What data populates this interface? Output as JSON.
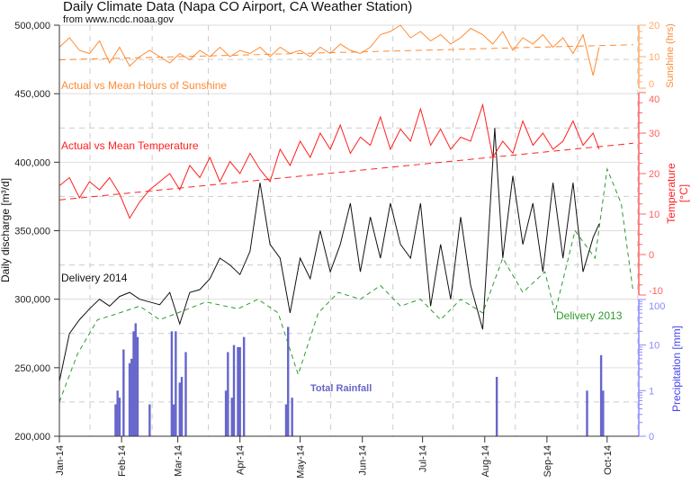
{
  "chart_data": {
    "type": "line",
    "title": "Daily Climate Data (Napa CO Airport, CA Weather Station)",
    "subtitle": "from www.ncdc.noaa.gov",
    "ylabel": "Daily discharge [m³/d]",
    "ylim": [
      200000,
      500000
    ],
    "yticks": [
      "200,000",
      "250,000",
      "300,000",
      "350,000",
      "400,000",
      "450,000",
      "500,000"
    ],
    "yticks_values": [
      200000,
      250000,
      300000,
      350000,
      400000,
      450000,
      500000
    ],
    "xlim": [
      "2014-01-01",
      "2014-10-15"
    ],
    "xticks": [
      {
        "date": "2014-01-01",
        "label": "Jan-14"
      },
      {
        "date": "2014-02-01",
        "label": "Feb-14"
      },
      {
        "date": "2014-03-01",
        "label": "Mar-14"
      },
      {
        "date": "2014-04-01",
        "label": "Apr-14"
      },
      {
        "date": "2014-05-01",
        "label": "May-14"
      },
      {
        "date": "2014-06-01",
        "label": "Jun-14"
      },
      {
        "date": "2014-07-01",
        "label": "Jul-14"
      },
      {
        "date": "2014-08-01",
        "label": "Aug-14"
      },
      {
        "date": "2014-09-01",
        "label": "Sep-14"
      },
      {
        "date": "2014-10-01",
        "label": "Oct-14"
      }
    ],
    "grid": true,
    "colors": {
      "sunshine": "#ff8a33",
      "temperature": "#ff2020",
      "delivery2014": "#111111",
      "delivery2013": "#2e9a2e",
      "rainfall": "#6666cc"
    },
    "right_axes": {
      "sunshine": {
        "label": "Sunshine (hrs)",
        "range": [
          0,
          20
        ],
        "ticks": [
          "0",
          "10",
          "20"
        ],
        "tick_values": [
          0,
          10,
          20
        ]
      },
      "temperature": {
        "label": "Temperature",
        "label2": "[°C]",
        "range": [
          -10,
          40
        ],
        "ticks": [
          "-10",
          "0",
          "10",
          "20",
          "30",
          "40"
        ],
        "tick_values": [
          -10,
          0,
          10,
          20,
          30,
          40
        ]
      },
      "precipitation": {
        "label": "Precipitation [mm]",
        "scale": "log",
        "range": [
          0.1,
          100
        ],
        "ticks": [
          "0",
          "1",
          "10",
          "100"
        ],
        "tick_values": [
          0.1,
          1,
          10,
          100
        ]
      }
    },
    "annotations": {
      "sunshine": "Actual vs Mean Hours of Sunshine",
      "temperature": "Actual vs Mean Temperature",
      "delivery2014": "Delivery 2014",
      "delivery2013": "Delivery 2013",
      "rainfall": "Total Rainfall"
    },
    "series": {
      "delivery2014": [
        [
          "2014-01-01",
          240000
        ],
        [
          "2014-01-06",
          275000
        ],
        [
          "2014-01-11",
          285000
        ],
        [
          "2014-01-16",
          293000
        ],
        [
          "2014-01-21",
          300000
        ],
        [
          "2014-01-26",
          295000
        ],
        [
          "2014-01-31",
          302000
        ],
        [
          "2014-02-05",
          305000
        ],
        [
          "2014-02-10",
          300000
        ],
        [
          "2014-02-15",
          298000
        ],
        [
          "2014-02-20",
          296000
        ],
        [
          "2014-02-25",
          305000
        ],
        [
          "2014-03-02",
          282000
        ],
        [
          "2014-03-07",
          305000
        ],
        [
          "2014-03-12",
          307000
        ],
        [
          "2014-03-17",
          315000
        ],
        [
          "2014-03-22",
          330000
        ],
        [
          "2014-03-27",
          325000
        ],
        [
          "2014-04-01",
          318000
        ],
        [
          "2014-04-06",
          335000
        ],
        [
          "2014-04-11",
          385000
        ],
        [
          "2014-04-16",
          340000
        ],
        [
          "2014-04-21",
          330000
        ],
        [
          "2014-04-26",
          290000
        ],
        [
          "2014-05-01",
          330000
        ],
        [
          "2014-05-06",
          315000
        ],
        [
          "2014-05-11",
          350000
        ],
        [
          "2014-05-16",
          320000
        ],
        [
          "2014-05-21",
          340000
        ],
        [
          "2014-05-26",
          370000
        ],
        [
          "2014-05-31",
          320000
        ],
        [
          "2014-06-05",
          360000
        ],
        [
          "2014-06-10",
          330000
        ],
        [
          "2014-06-15",
          370000
        ],
        [
          "2014-06-20",
          340000
        ],
        [
          "2014-06-25",
          330000
        ],
        [
          "2014-06-30",
          370000
        ],
        [
          "2014-07-05",
          295000
        ],
        [
          "2014-07-10",
          340000
        ],
        [
          "2014-07-15",
          300000
        ],
        [
          "2014-07-20",
          360000
        ],
        [
          "2014-07-25",
          310000
        ],
        [
          "2014-07-31",
          278000
        ],
        [
          "2014-08-03",
          350000
        ],
        [
          "2014-08-06",
          425000
        ],
        [
          "2014-08-10",
          330000
        ],
        [
          "2014-08-15",
          390000
        ],
        [
          "2014-08-20",
          340000
        ],
        [
          "2014-08-25",
          370000
        ],
        [
          "2014-08-30",
          320000
        ],
        [
          "2014-09-04",
          385000
        ],
        [
          "2014-09-09",
          330000
        ],
        [
          "2014-09-14",
          385000
        ],
        [
          "2014-09-19",
          320000
        ],
        [
          "2014-09-24",
          345000
        ],
        [
          "2014-09-27",
          355000
        ]
      ],
      "delivery2013": [
        [
          "2014-01-01",
          225000
        ],
        [
          "2014-01-10",
          260000
        ],
        [
          "2014-01-20",
          285000
        ],
        [
          "2014-01-31",
          290000
        ],
        [
          "2014-02-10",
          295000
        ],
        [
          "2014-02-20",
          285000
        ],
        [
          "2014-03-01",
          290000
        ],
        [
          "2014-03-15",
          298000
        ],
        [
          "2014-03-31",
          293000
        ],
        [
          "2014-04-10",
          300000
        ],
        [
          "2014-04-20",
          290000
        ],
        [
          "2014-04-30",
          245000
        ],
        [
          "2014-05-10",
          290000
        ],
        [
          "2014-05-20",
          305000
        ],
        [
          "2014-05-31",
          300000
        ],
        [
          "2014-06-10",
          310000
        ],
        [
          "2014-06-20",
          295000
        ],
        [
          "2014-06-30",
          300000
        ],
        [
          "2014-07-10",
          285000
        ],
        [
          "2014-07-20",
          300000
        ],
        [
          "2014-07-31",
          290000
        ],
        [
          "2014-08-10",
          330000
        ],
        [
          "2014-08-20",
          305000
        ],
        [
          "2014-08-31",
          320000
        ],
        [
          "2014-09-05",
          290000
        ],
        [
          "2014-09-15",
          350000
        ],
        [
          "2014-09-25",
          330000
        ],
        [
          "2014-10-01",
          395000
        ],
        [
          "2014-10-08",
          370000
        ],
        [
          "2014-10-14",
          305000
        ]
      ],
      "sunshine": [
        [
          "2014-01-01",
          13
        ],
        [
          "2014-01-06",
          16
        ],
        [
          "2014-01-11",
          12
        ],
        [
          "2014-01-16",
          11
        ],
        [
          "2014-01-21",
          15
        ],
        [
          "2014-01-26",
          8
        ],
        [
          "2014-01-31",
          13
        ],
        [
          "2014-02-05",
          7
        ],
        [
          "2014-02-10",
          10
        ],
        [
          "2014-02-15",
          12
        ],
        [
          "2014-02-20",
          10
        ],
        [
          "2014-02-25",
          8
        ],
        [
          "2014-03-02",
          11
        ],
        [
          "2014-03-07",
          9
        ],
        [
          "2014-03-12",
          12
        ],
        [
          "2014-03-17",
          10
        ],
        [
          "2014-03-22",
          13
        ],
        [
          "2014-03-27",
          10
        ],
        [
          "2014-04-01",
          12
        ],
        [
          "2014-04-06",
          11
        ],
        [
          "2014-04-11",
          13
        ],
        [
          "2014-04-16",
          10
        ],
        [
          "2014-04-21",
          13
        ],
        [
          "2014-04-26",
          11
        ],
        [
          "2014-05-01",
          12
        ],
        [
          "2014-05-06",
          10
        ],
        [
          "2014-05-11",
          13
        ],
        [
          "2014-05-16",
          11
        ],
        [
          "2014-05-21",
          14
        ],
        [
          "2014-05-26",
          12
        ],
        [
          "2014-05-31",
          11
        ],
        [
          "2014-06-05",
          13
        ],
        [
          "2014-06-10",
          17
        ],
        [
          "2014-06-15",
          18
        ],
        [
          "2014-06-20",
          20
        ],
        [
          "2014-06-25",
          16
        ],
        [
          "2014-06-30",
          18
        ],
        [
          "2014-07-05",
          15
        ],
        [
          "2014-07-10",
          17
        ],
        [
          "2014-07-15",
          14
        ],
        [
          "2014-07-20",
          16
        ],
        [
          "2014-07-25",
          19
        ],
        [
          "2014-07-31",
          17
        ],
        [
          "2014-08-05",
          14
        ],
        [
          "2014-08-10",
          18
        ],
        [
          "2014-08-15",
          12
        ],
        [
          "2014-08-20",
          16
        ],
        [
          "2014-08-25",
          14
        ],
        [
          "2014-08-30",
          17
        ],
        [
          "2014-09-04",
          13
        ],
        [
          "2014-09-09",
          16
        ],
        [
          "2014-09-14",
          11
        ],
        [
          "2014-09-19",
          17
        ],
        [
          "2014-09-24",
          4
        ],
        [
          "2014-09-27",
          13
        ]
      ],
      "sunshine_mean": [
        [
          "2014-01-01",
          9
        ],
        [
          "2014-10-14",
          13.8
        ]
      ],
      "temperature": [
        [
          "2014-01-01",
          17
        ],
        [
          "2014-01-06",
          19
        ],
        [
          "2014-01-11",
          14
        ],
        [
          "2014-01-16",
          18
        ],
        [
          "2014-01-21",
          16
        ],
        [
          "2014-01-26",
          19
        ],
        [
          "2014-01-31",
          15
        ],
        [
          "2014-02-05",
          9
        ],
        [
          "2014-02-10",
          13
        ],
        [
          "2014-02-15",
          16
        ],
        [
          "2014-02-20",
          18
        ],
        [
          "2014-02-25",
          20
        ],
        [
          "2014-03-02",
          16
        ],
        [
          "2014-03-07",
          22
        ],
        [
          "2014-03-12",
          19
        ],
        [
          "2014-03-17",
          24
        ],
        [
          "2014-03-22",
          18
        ],
        [
          "2014-03-27",
          23
        ],
        [
          "2014-04-01",
          20
        ],
        [
          "2014-04-06",
          25
        ],
        [
          "2014-04-11",
          21
        ],
        [
          "2014-04-16",
          18
        ],
        [
          "2014-04-21",
          26
        ],
        [
          "2014-04-26",
          22
        ],
        [
          "2014-05-01",
          28
        ],
        [
          "2014-05-06",
          24
        ],
        [
          "2014-05-11",
          30
        ],
        [
          "2014-05-16",
          26
        ],
        [
          "2014-05-21",
          32
        ],
        [
          "2014-05-26",
          25
        ],
        [
          "2014-05-31",
          29
        ],
        [
          "2014-06-05",
          27
        ],
        [
          "2014-06-10",
          34
        ],
        [
          "2014-06-15",
          26
        ],
        [
          "2014-06-20",
          31
        ],
        [
          "2014-06-25",
          28
        ],
        [
          "2014-06-30",
          36
        ],
        [
          "2014-07-05",
          27
        ],
        [
          "2014-07-10",
          31
        ],
        [
          "2014-07-15",
          26
        ],
        [
          "2014-07-20",
          29
        ],
        [
          "2014-07-25",
          28
        ],
        [
          "2014-07-31",
          37
        ],
        [
          "2014-08-05",
          24
        ],
        [
          "2014-08-10",
          28
        ],
        [
          "2014-08-15",
          25
        ],
        [
          "2014-08-20",
          33
        ],
        [
          "2014-08-25",
          27
        ],
        [
          "2014-08-30",
          30
        ],
        [
          "2014-09-04",
          26
        ],
        [
          "2014-09-09",
          28
        ],
        [
          "2014-09-14",
          33
        ],
        [
          "2014-09-19",
          27
        ],
        [
          "2014-09-24",
          30
        ],
        [
          "2014-09-27",
          26
        ]
      ],
      "temperature_mean": [
        [
          "2014-01-01",
          13.5
        ],
        [
          "2014-10-14",
          27.5
        ]
      ],
      "rainfall": [
        [
          "2014-01-29",
          0.5
        ],
        [
          "2014-01-30",
          1
        ],
        [
          "2014-01-31",
          0.7
        ],
        [
          "2014-02-02",
          8
        ],
        [
          "2014-02-05",
          4
        ],
        [
          "2014-02-06",
          5
        ],
        [
          "2014-02-07",
          20
        ],
        [
          "2014-02-08",
          30
        ],
        [
          "2014-02-09",
          15
        ],
        [
          "2014-02-15",
          0.5
        ],
        [
          "2014-02-26",
          20
        ],
        [
          "2014-02-27",
          0.5
        ],
        [
          "2014-02-28",
          20
        ],
        [
          "2014-03-02",
          1.5
        ],
        [
          "2014-03-03",
          2
        ],
        [
          "2014-03-05",
          7
        ],
        [
          "2014-03-25",
          1
        ],
        [
          "2014-03-26",
          7
        ],
        [
          "2014-03-28",
          0.7
        ],
        [
          "2014-03-29",
          10
        ],
        [
          "2014-03-31",
          9
        ],
        [
          "2014-04-01",
          9
        ],
        [
          "2014-04-03",
          15
        ],
        [
          "2014-04-24",
          0.5
        ],
        [
          "2014-04-25",
          25
        ],
        [
          "2014-04-27",
          0.7
        ],
        [
          "2014-08-07",
          2
        ],
        [
          "2014-09-21",
          1
        ],
        [
          "2014-09-28",
          6
        ],
        [
          "2014-09-29",
          1
        ]
      ]
    }
  }
}
